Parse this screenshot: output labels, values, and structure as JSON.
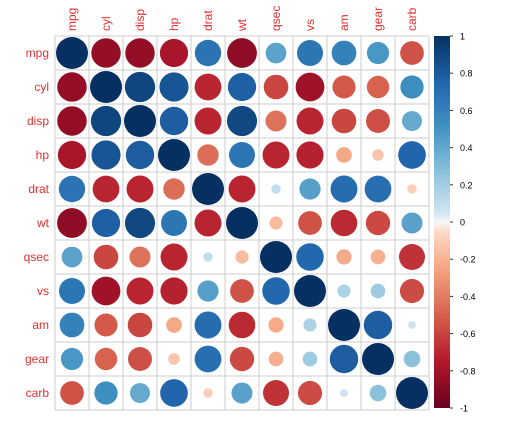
{
  "chart_data": {
    "type": "heatmap",
    "variables": [
      "mpg",
      "cyl",
      "disp",
      "hp",
      "drat",
      "wt",
      "qsec",
      "vs",
      "am",
      "gear",
      "carb"
    ],
    "matrix": [
      [
        1.0,
        -0.85,
        -0.85,
        -0.78,
        0.68,
        -0.87,
        0.42,
        0.66,
        0.6,
        0.48,
        -0.55
      ],
      [
        -0.85,
        1.0,
        0.9,
        0.83,
        -0.7,
        0.78,
        -0.59,
        -0.81,
        -0.52,
        -0.49,
        0.53
      ],
      [
        -0.85,
        0.9,
        1.0,
        0.79,
        -0.71,
        0.89,
        -0.43,
        -0.71,
        -0.59,
        -0.56,
        0.39
      ],
      [
        -0.78,
        0.83,
        0.79,
        1.0,
        -0.45,
        0.66,
        -0.71,
        -0.72,
        -0.24,
        -0.13,
        0.75
      ],
      [
        0.68,
        -0.7,
        -0.71,
        -0.45,
        1.0,
        -0.71,
        0.09,
        0.44,
        0.71,
        0.7,
        -0.09
      ],
      [
        -0.87,
        0.78,
        0.89,
        0.66,
        -0.71,
        1.0,
        -0.17,
        -0.55,
        -0.69,
        -0.58,
        0.43
      ],
      [
        0.42,
        -0.59,
        -0.43,
        -0.71,
        0.09,
        -0.17,
        1.0,
        0.74,
        -0.23,
        -0.21,
        -0.66
      ],
      [
        0.66,
        -0.81,
        -0.71,
        -0.72,
        0.44,
        -0.55,
        0.74,
        1.0,
        0.17,
        0.21,
        -0.57
      ],
      [
        0.6,
        -0.52,
        -0.59,
        -0.24,
        0.71,
        -0.69,
        -0.23,
        0.17,
        1.0,
        0.79,
        0.06
      ],
      [
        0.48,
        -0.49,
        -0.56,
        -0.13,
        0.7,
        -0.58,
        -0.21,
        0.21,
        0.79,
        1.0,
        0.27
      ],
      [
        -0.55,
        0.53,
        0.39,
        0.75,
        -0.09,
        0.43,
        -0.66,
        -0.57,
        0.06,
        0.27,
        1.0
      ]
    ],
    "colorbar": {
      "range": [
        -1,
        1
      ],
      "ticks": [
        "1",
        "0.8",
        "0.6",
        "0.4",
        "0.2",
        "0",
        "-0.2",
        "-0.4",
        "-0.6",
        "-0.8",
        "-1"
      ]
    },
    "colors": {
      "negative_end": "#67001f",
      "neutral": "#f7f7f7",
      "positive_end": "#053061",
      "label": "#e03030",
      "grid": "#cccccc"
    }
  }
}
